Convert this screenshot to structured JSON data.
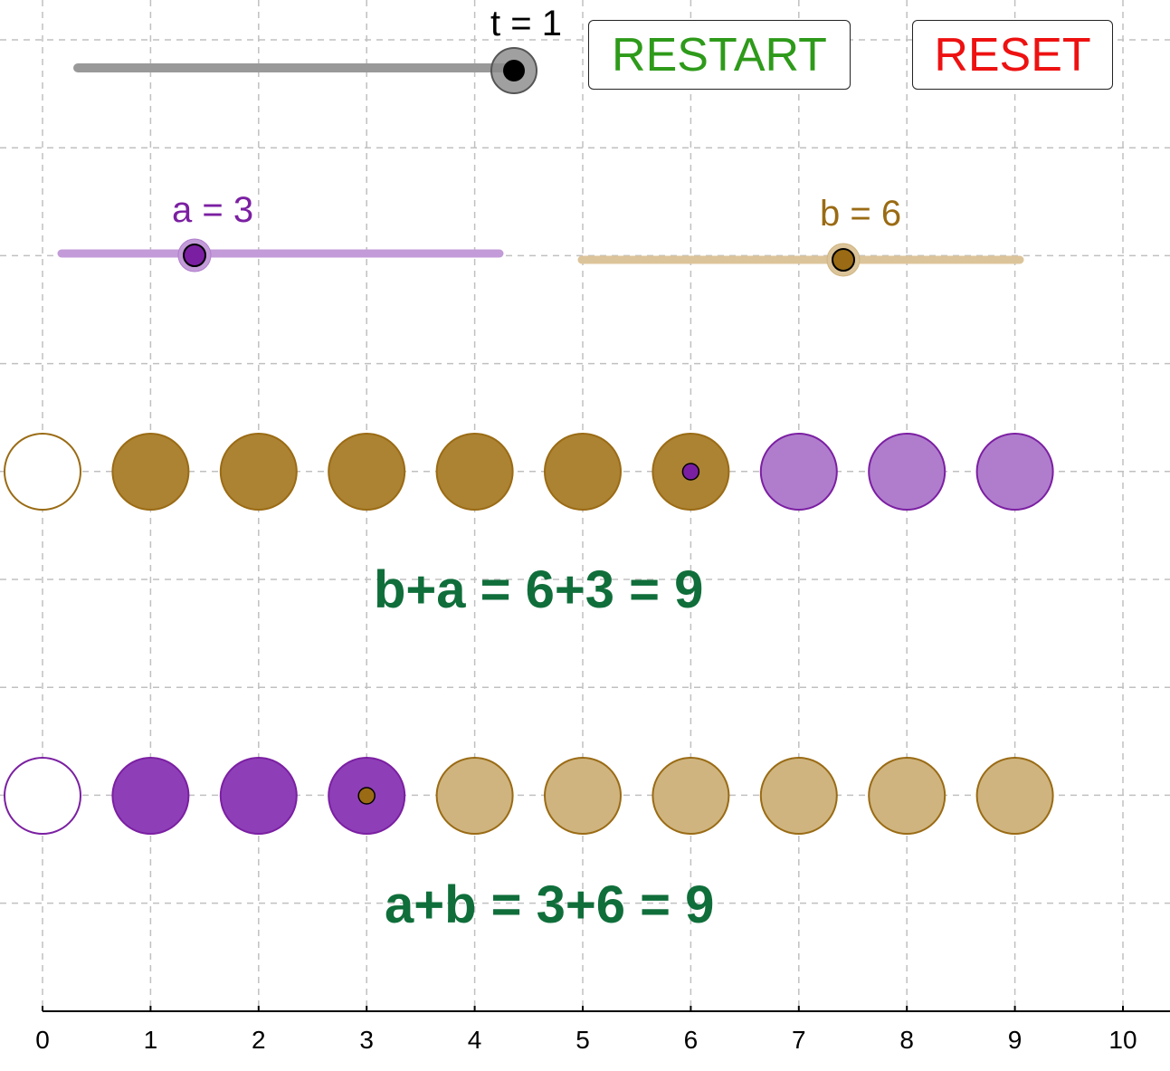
{
  "colors": {
    "grid": "#c0c0c0",
    "axis": "#000000",
    "a_dark": "#7b1fa2",
    "a_fill_full": "#8e3fb8",
    "a_fill_light": "#b07dcd",
    "a_track": "#c39bd8",
    "b_dark": "#9a6b14",
    "b_fill_full": "#ac8233",
    "b_fill_light": "#cfb47f",
    "b_track": "#dcc49a",
    "equation": "#0f6e3a",
    "restart": "#2e9a1a",
    "reset": "#ee1111",
    "t_track": "#999999"
  },
  "t_slider": {
    "label": "t = 1",
    "value": 1
  },
  "buttons": {
    "restart_label": "RESTART",
    "reset_label": "RESET"
  },
  "a_slider": {
    "label": "a = 3",
    "value": 3
  },
  "b_slider": {
    "label": "b = 6",
    "value": 6
  },
  "equations": {
    "b_plus_a": "b+a = 6+3 = 9",
    "a_plus_b": "a+b = 3+6 = 9"
  },
  "x_axis": {
    "ticks": [
      "0",
      "1",
      "2",
      "3",
      "4",
      "5",
      "6",
      "7",
      "8",
      "9",
      "10"
    ]
  },
  "rows": {
    "b_plus_a": {
      "empty_circle_color": "b_dark",
      "first_count": 6,
      "first_group": "b",
      "first_style": "full",
      "second_count": 3,
      "second_group": "a",
      "second_style": "light",
      "marker_position": 6,
      "marker_group": "a"
    },
    "a_plus_b": {
      "empty_circle_color": "a_dark",
      "first_count": 3,
      "first_group": "a",
      "first_style": "full",
      "second_count": 6,
      "second_group": "b",
      "second_style": "light",
      "marker_position": 3,
      "marker_group": "b"
    }
  }
}
